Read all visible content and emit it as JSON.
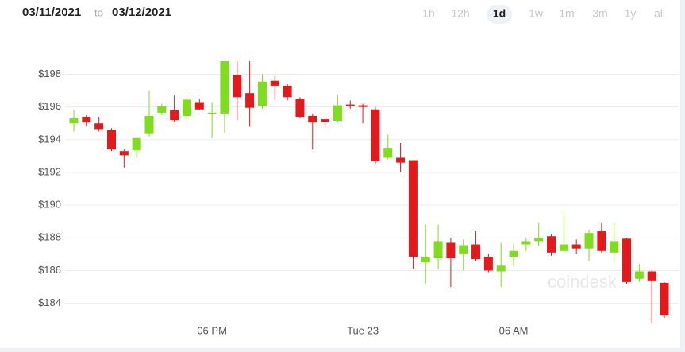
{
  "date_range": {
    "from": "03/11/2021",
    "separator": "to",
    "to": "03/12/2021"
  },
  "range_buttons": [
    "1h",
    "12h",
    "1d",
    "1w",
    "1m",
    "3m",
    "1y",
    "all"
  ],
  "active_range_index": 2,
  "watermark": "coindesk",
  "chart_data": {
    "type": "candlestick",
    "categories": [
      null,
      null,
      null,
      null,
      null,
      null,
      null,
      null,
      null,
      null,
      null,
      "06 PM",
      null,
      null,
      null,
      null,
      null,
      null,
      null,
      null,
      null,
      null,
      null,
      "Tue 23",
      null,
      null,
      null,
      null,
      null,
      null,
      null,
      null,
      null,
      null,
      null,
      "06 AM",
      null,
      null,
      null,
      null,
      null,
      null,
      null,
      null,
      null,
      null,
      null,
      null
    ],
    "open": [
      195.0,
      195.4,
      195.0,
      194.6,
      193.3,
      193.35,
      194.35,
      195.65,
      195.8,
      195.45,
      196.3,
      195.6,
      195.6,
      197.95,
      196.85,
      196.05,
      197.6,
      197.3,
      196.5,
      195.45,
      195.25,
      195.15,
      196.15,
      196.1,
      195.85,
      192.9,
      192.9,
      192.75,
      186.5,
      186.75,
      187.7,
      187.0,
      187.6,
      186.85,
      185.95,
      186.85,
      187.6,
      187.8,
      188.1,
      187.2,
      187.6,
      187.35,
      188.4,
      187.1,
      187.95,
      185.5,
      185.95,
      185.25
    ],
    "high": [
      195.8,
      195.5,
      195.4,
      194.7,
      193.4,
      194.1,
      197.0,
      196.2,
      196.7,
      196.8,
      196.5,
      196.3,
      198.8,
      198.8,
      198.8,
      198.0,
      197.9,
      197.4,
      196.6,
      195.6,
      195.3,
      196.7,
      196.4,
      196.2,
      196.0,
      194.3,
      193.8,
      192.75,
      188.8,
      188.8,
      188.0,
      187.9,
      188.4,
      187.0,
      187.7,
      187.6,
      188.0,
      188.9,
      188.2,
      189.6,
      187.9,
      188.5,
      188.9,
      188.9,
      188.0,
      186.4,
      186.0,
      185.3
    ],
    "low": [
      194.5,
      194.8,
      194.5,
      193.3,
      192.3,
      192.9,
      194.2,
      195.5,
      195.1,
      195.2,
      195.8,
      194.1,
      194.4,
      195.2,
      194.8,
      195.9,
      196.5,
      196.4,
      195.3,
      193.4,
      194.7,
      195.1,
      195.9,
      195.0,
      192.5,
      192.8,
      192.0,
      186.1,
      185.2,
      186.1,
      185.0,
      186.0,
      186.6,
      185.9,
      185.0,
      186.3,
      187.2,
      187.5,
      186.9,
      187.1,
      187.0,
      186.6,
      187.1,
      186.6,
      185.2,
      185.3,
      182.8,
      183.1
    ],
    "close": [
      195.3,
      195.05,
      194.65,
      193.4,
      193.05,
      194.1,
      195.45,
      196.05,
      195.2,
      196.45,
      195.85,
      195.65,
      198.8,
      196.6,
      195.95,
      197.55,
      197.3,
      196.6,
      195.4,
      195.05,
      195.1,
      196.1,
      196.1,
      196.0,
      192.7,
      193.5,
      192.6,
      186.85,
      186.85,
      187.8,
      186.75,
      187.55,
      186.7,
      186.0,
      186.3,
      187.2,
      187.8,
      188.0,
      187.1,
      187.6,
      187.35,
      188.3,
      187.2,
      187.8,
      185.3,
      185.95,
      185.35,
      183.25
    ],
    "up_color": "#80dc1e",
    "down_color": "#e3191b",
    "ylim": [
      181.6,
      200.6
    ],
    "yticks": [
      {
        "value": 184,
        "label": "$184"
      },
      {
        "value": 186,
        "label": "$186"
      },
      {
        "value": 188,
        "label": "$188"
      },
      {
        "value": 190,
        "label": "$190"
      },
      {
        "value": 192,
        "label": "$192"
      },
      {
        "value": 194,
        "label": "$194"
      },
      {
        "value": 196,
        "label": "$196"
      },
      {
        "value": 198,
        "label": "$198"
      }
    ],
    "grid": true
  }
}
